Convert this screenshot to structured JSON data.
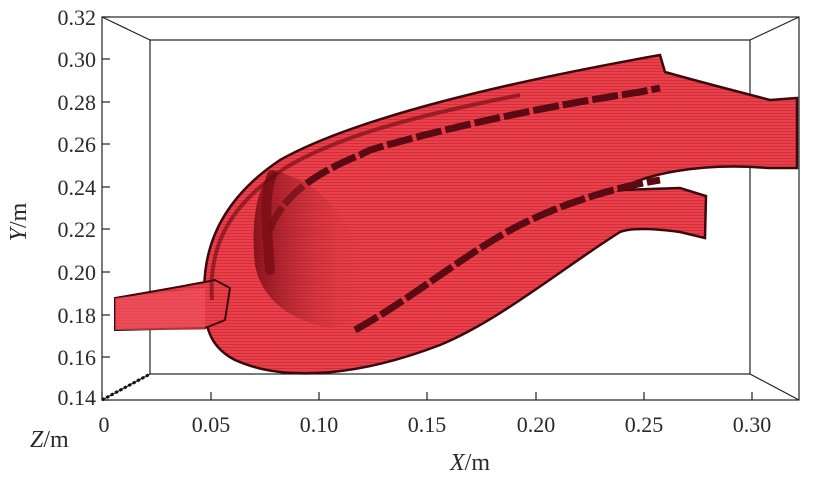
{
  "figure": {
    "axes": {
      "x": {
        "var": "X",
        "unit": "/m",
        "ticks": [
          "0",
          "0.05",
          "0.10",
          "0.15",
          "0.20",
          "0.25",
          "0.30"
        ]
      },
      "y": {
        "var": "Y",
        "unit": "/m",
        "ticks": [
          "0.32",
          "0.30",
          "0.28",
          "0.26",
          "0.24",
          "0.22",
          "0.20",
          "0.18",
          "0.16",
          "0.14"
        ]
      },
      "z": {
        "var": "Z",
        "unit": "/m"
      }
    },
    "colors": {
      "body": "#e8333f",
      "body_dark": "#8a1018",
      "outline": "#3a0a0e",
      "frame": "#222222"
    }
  }
}
